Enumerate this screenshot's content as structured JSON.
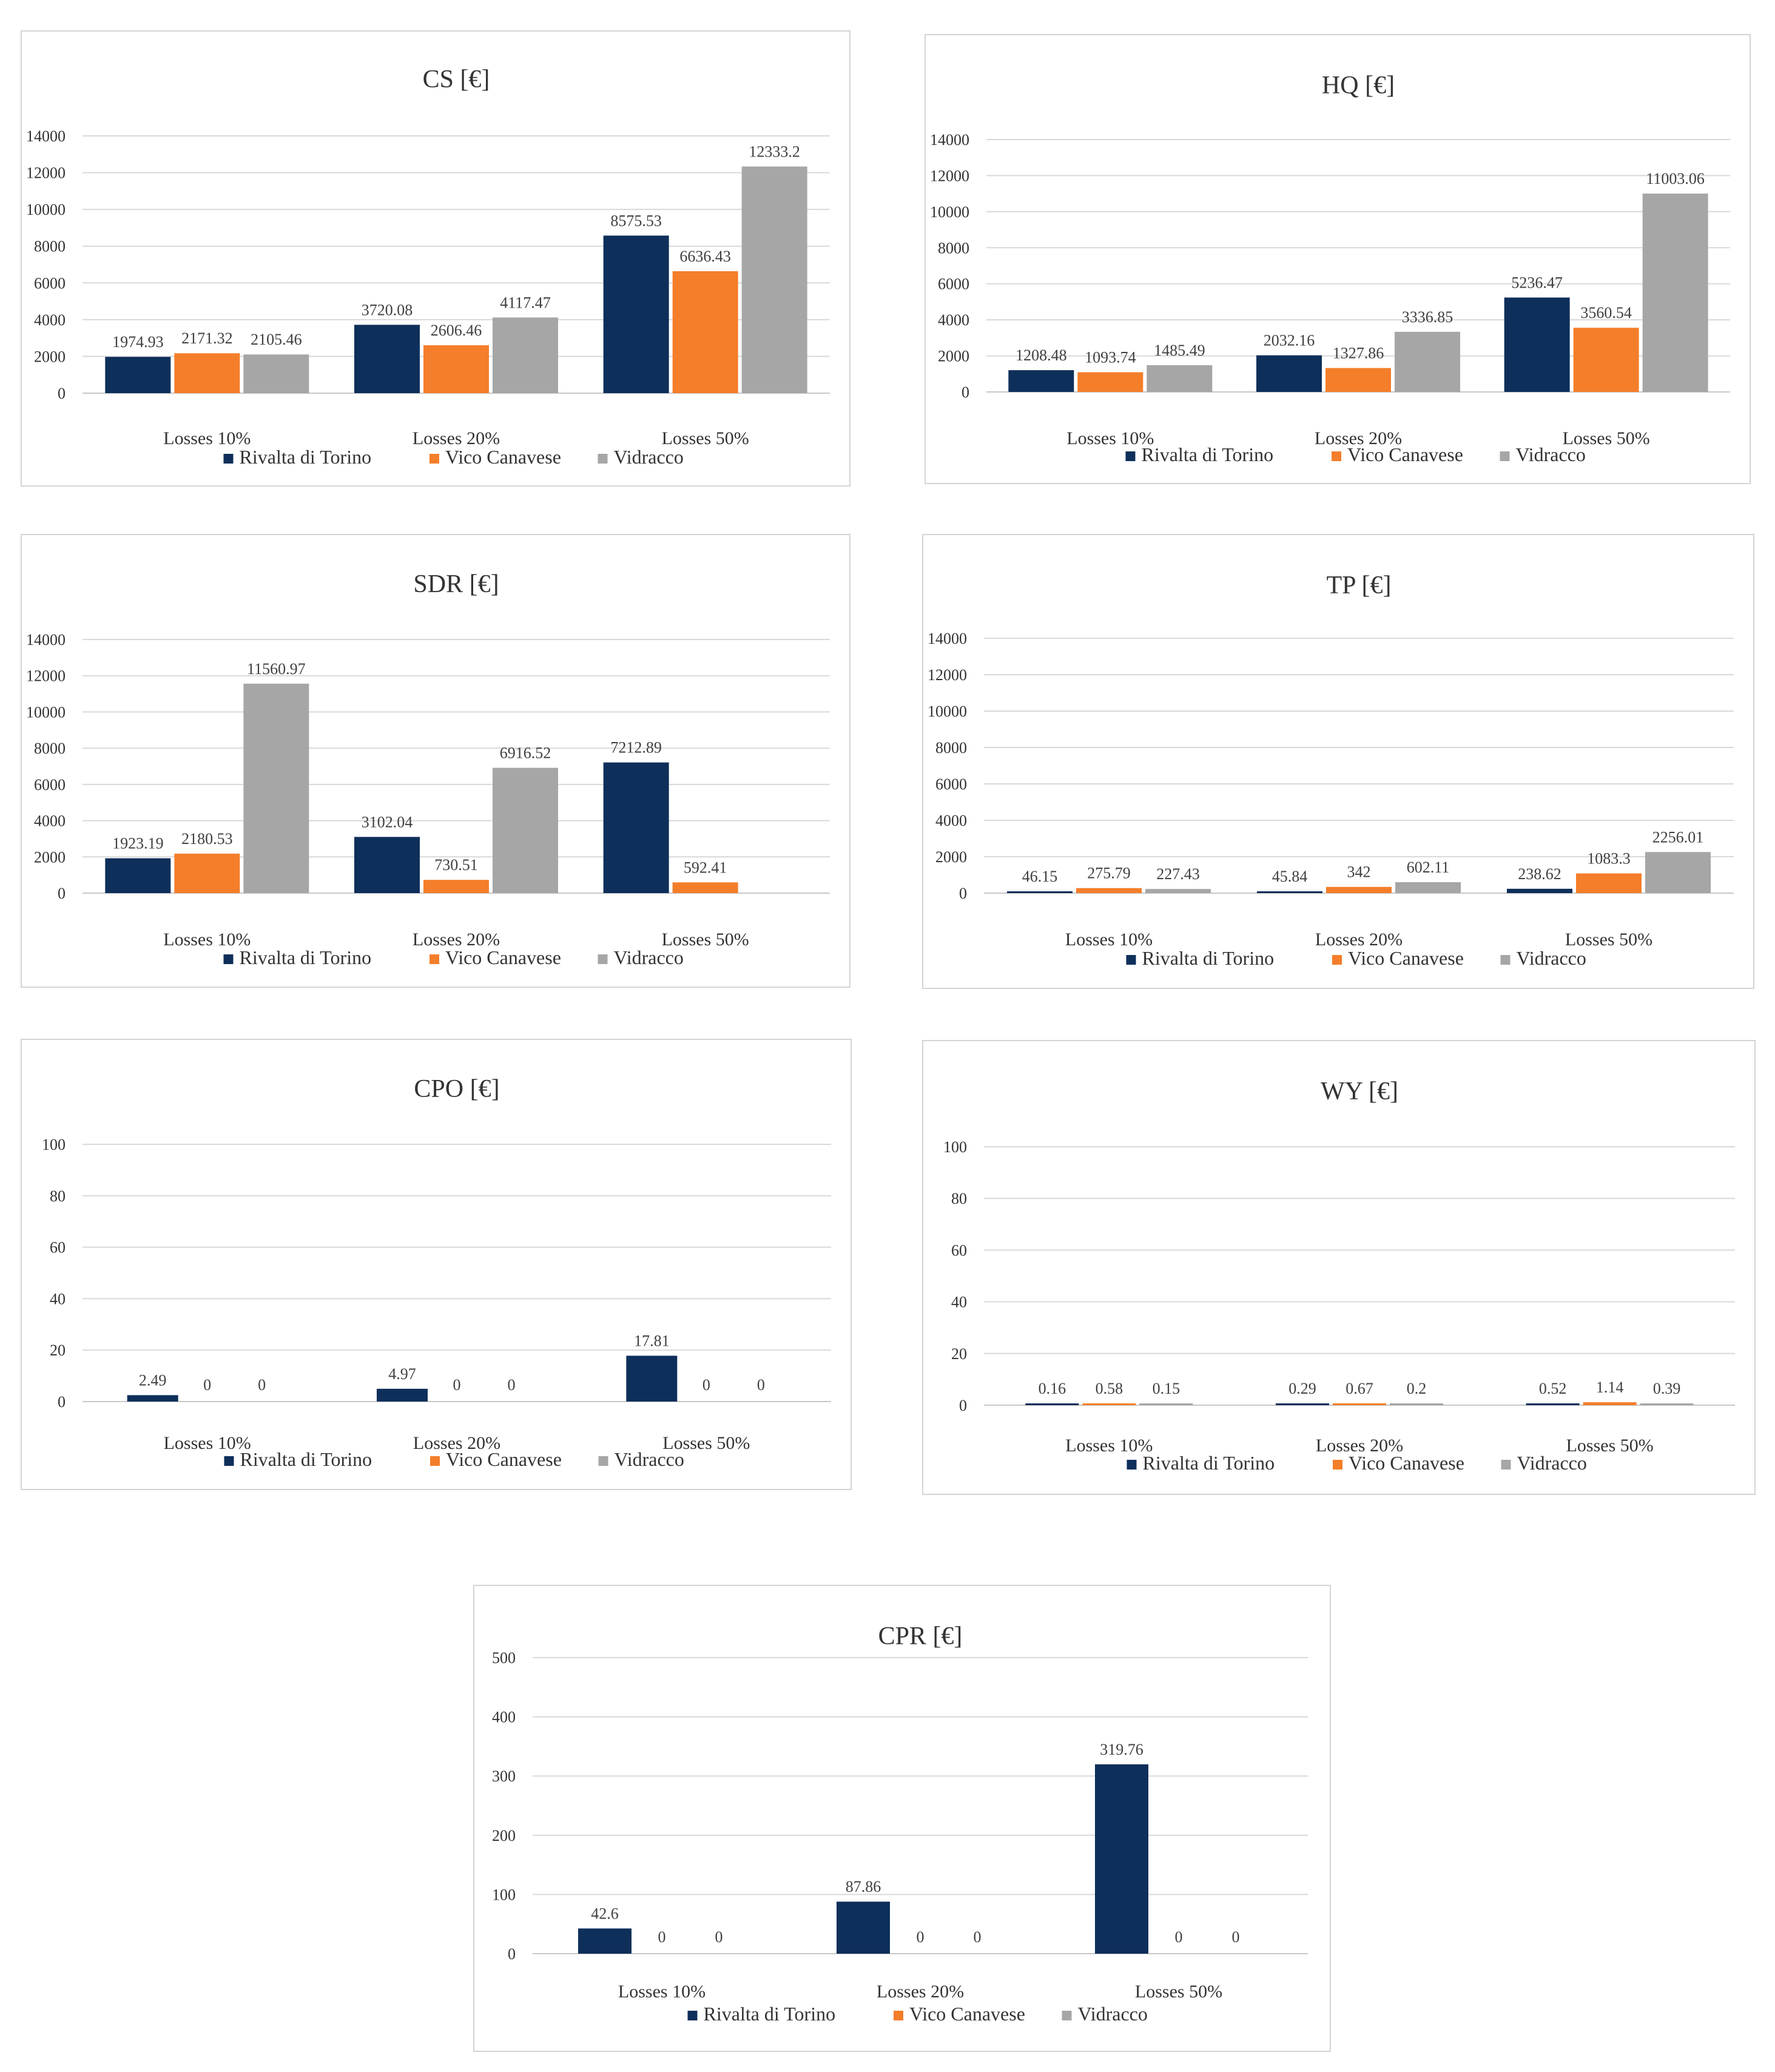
{
  "legend": {
    "series": [
      "Rivalta di Torino",
      "Vico Canavese",
      "Vidracco"
    ],
    "colors": [
      "#0e2f5a",
      "#f47e2a",
      "#a6a6a6"
    ]
  },
  "chart_data": [
    {
      "type": "bar",
      "title": "CS [€]",
      "categories": [
        "Losses 10%",
        "Losses 20%",
        "Losses 50%"
      ],
      "series": [
        {
          "name": "Rivalta di Torino",
          "values": [
            1974.93,
            3720.08,
            8575.53
          ],
          "labels": [
            "1974.93",
            "3720.08",
            "8575.53"
          ]
        },
        {
          "name": "Vico Canavese",
          "values": [
            2171.32,
            2606.46,
            6636.43
          ],
          "labels": [
            "2171.32",
            "2606.46",
            "6636.43"
          ]
        },
        {
          "name": "Vidracco",
          "values": [
            2105.46,
            4117.47,
            12333.2
          ],
          "labels": [
            "2105.46",
            "4117.47",
            "12333.2"
          ]
        }
      ],
      "ylim": [
        0,
        14000
      ],
      "yticks": [
        0,
        2000,
        4000,
        6000,
        8000,
        10000,
        12000,
        14000
      ],
      "legend_position": "bottom"
    },
    {
      "type": "bar",
      "title": "HQ [€]",
      "categories": [
        "Losses 10%",
        "Losses 20%",
        "Losses 50%"
      ],
      "series": [
        {
          "name": "Rivalta di Torino",
          "values": [
            1208.48,
            2032.16,
            5236.47
          ],
          "labels": [
            "1208.48",
            "2032.16",
            "5236.47"
          ]
        },
        {
          "name": "Vico Canavese",
          "values": [
            1093.74,
            1327.86,
            3560.54
          ],
          "labels": [
            "1093.74",
            "1327.86",
            "3560.54"
          ]
        },
        {
          "name": "Vidracco",
          "values": [
            1485.49,
            3336.85,
            11003.06
          ],
          "labels": [
            "1485.49",
            "3336.85",
            "11003.06"
          ]
        }
      ],
      "ylim": [
        0,
        14000
      ],
      "yticks": [
        0,
        2000,
        4000,
        6000,
        8000,
        10000,
        12000,
        14000
      ],
      "legend_position": "bottom"
    },
    {
      "type": "bar",
      "title": "SDR [€]",
      "categories": [
        "Losses 10%",
        "Losses 20%",
        "Losses 50%"
      ],
      "series": [
        {
          "name": "Rivalta di Torino",
          "values": [
            1923.19,
            3102.04,
            7212.89
          ],
          "labels": [
            "1923.19",
            "3102.04",
            "7212.89"
          ]
        },
        {
          "name": "Vico Canavese",
          "values": [
            2180.53,
            730.51,
            592.41
          ],
          "labels": [
            "2180.53",
            "730.51",
            "592.41"
          ]
        },
        {
          "name": "Vidracco",
          "values": [
            11560.97,
            6916.52,
            null
          ],
          "labels": [
            "11560.97",
            "6916.52",
            ""
          ]
        }
      ],
      "ylim": [
        0,
        14000
      ],
      "yticks": [
        0,
        2000,
        4000,
        6000,
        8000,
        10000,
        12000,
        14000
      ],
      "legend_position": "bottom"
    },
    {
      "type": "bar",
      "title": "TP [€]",
      "categories": [
        "Losses 10%",
        "Losses 20%",
        "Losses 50%"
      ],
      "series": [
        {
          "name": "Rivalta di Torino",
          "values": [
            46.15,
            45.84,
            238.62
          ],
          "labels": [
            "46.15",
            "45.84",
            "238.62"
          ]
        },
        {
          "name": "Vico Canavese",
          "values": [
            275.79,
            342,
            1083.3
          ],
          "labels": [
            "275.79",
            "342",
            "1083.3"
          ]
        },
        {
          "name": "Vidracco",
          "values": [
            227.43,
            602.11,
            2256.01
          ],
          "labels": [
            "227.43",
            "602.11",
            "2256.01"
          ]
        }
      ],
      "ylim": [
        0,
        14000
      ],
      "yticks": [
        0,
        2000,
        4000,
        6000,
        8000,
        10000,
        12000,
        14000
      ],
      "legend_position": "bottom"
    },
    {
      "type": "bar",
      "title": "CPO [€]",
      "categories": [
        "Losses 10%",
        "Losses 20%",
        "Losses 50%"
      ],
      "series": [
        {
          "name": "Rivalta di Torino",
          "values": [
            2.49,
            4.97,
            17.81
          ],
          "labels": [
            "2.49",
            "4.97",
            "17.81"
          ]
        },
        {
          "name": "Vico Canavese",
          "values": [
            0,
            0,
            0
          ],
          "labels": [
            "0",
            "0",
            "0"
          ]
        },
        {
          "name": "Vidracco",
          "values": [
            0,
            0,
            0
          ],
          "labels": [
            "0",
            "0",
            "0"
          ]
        }
      ],
      "ylim": [
        0,
        100
      ],
      "yticks": [
        0,
        20,
        40,
        60,
        80,
        100
      ],
      "legend_position": "bottom"
    },
    {
      "type": "bar",
      "title": "WY [€]",
      "categories": [
        "Losses 10%",
        "Losses 20%",
        "Losses 50%"
      ],
      "series": [
        {
          "name": "Rivalta di Torino",
          "values": [
            0.16,
            0.29,
            0.52
          ],
          "labels": [
            "0.16",
            "0.29",
            "0.52"
          ]
        },
        {
          "name": "Vico Canavese",
          "values": [
            0.58,
            0.67,
            1.14
          ],
          "labels": [
            "0.58",
            "0.67",
            "1.14"
          ]
        },
        {
          "name": "Vidracco",
          "values": [
            0.15,
            0.2,
            0.39
          ],
          "labels": [
            "0.15",
            "0.2",
            "0.39"
          ]
        }
      ],
      "ylim": [
        0,
        100
      ],
      "yticks": [
        0,
        20,
        40,
        60,
        80,
        100
      ],
      "legend_position": "bottom"
    },
    {
      "type": "bar",
      "title": "CPR [€]",
      "categories": [
        "Losses 10%",
        "Losses 20%",
        "Losses 50%"
      ],
      "series": [
        {
          "name": "Rivalta di Torino",
          "values": [
            42.6,
            87.86,
            319.76
          ],
          "labels": [
            "42.6",
            "87.86",
            "319.76"
          ]
        },
        {
          "name": "Vico Canavese",
          "values": [
            0,
            0,
            0
          ],
          "labels": [
            "0",
            "0",
            "0"
          ]
        },
        {
          "name": "Vidracco",
          "values": [
            0,
            0,
            0
          ],
          "labels": [
            "0",
            "0",
            "0"
          ]
        }
      ],
      "ylim": [
        0,
        500
      ],
      "yticks": [
        0,
        100,
        200,
        300,
        400,
        500
      ],
      "legend_position": "bottom"
    }
  ]
}
